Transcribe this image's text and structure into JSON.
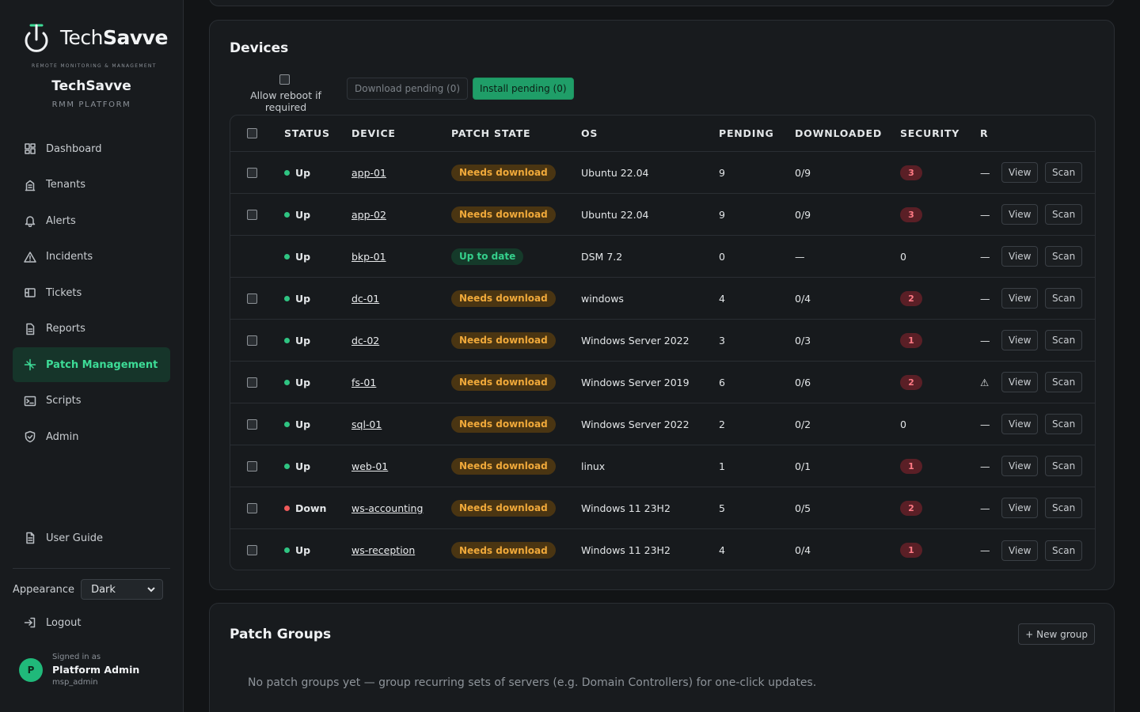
{
  "brand": {
    "logo_text_light": "Tech",
    "logo_text_bold": "Savve",
    "logo_sub": "REMOTE MONITORING & MANAGEMENT",
    "title": "TechSavve",
    "subtitle": "RMM PLATFORM"
  },
  "nav": [
    {
      "label": "Dashboard",
      "icon": "dashboard-icon"
    },
    {
      "label": "Tenants",
      "icon": "building-icon"
    },
    {
      "label": "Alerts",
      "icon": "bell-icon"
    },
    {
      "label": "Incidents",
      "icon": "warning-icon"
    },
    {
      "label": "Tickets",
      "icon": "ticket-icon"
    },
    {
      "label": "Reports",
      "icon": "report-icon"
    },
    {
      "label": "Patch Management",
      "icon": "patch-icon",
      "active": true
    },
    {
      "label": "Scripts",
      "icon": "terminal-icon"
    },
    {
      "label": "Admin",
      "icon": "shield-icon"
    }
  ],
  "footer": {
    "user_guide": "User Guide",
    "appearance_label": "Appearance",
    "appearance_value": "Dark",
    "logout": "Logout",
    "signed_in_as": "Signed in as",
    "user_name": "Platform Admin",
    "user_handle": "msp_admin",
    "avatar_initial": "P"
  },
  "devices": {
    "title": "Devices",
    "allow_reboot_label": "Allow reboot if required",
    "download_pending": "Download pending (0)",
    "install_pending": "Install pending (0)",
    "columns": {
      "status": "STATUS",
      "device": "DEVICE",
      "patch_state": "PATCH STATE",
      "os": "OS",
      "pending": "PENDING",
      "downloaded": "DOWNLOADED",
      "security": "SECURITY",
      "r": "R"
    },
    "view_label": "View",
    "scan_label": "Scan",
    "rows": [
      {
        "checkbox": true,
        "status": "Up",
        "down": false,
        "device": "app-01",
        "patch": "Needs download",
        "ok": false,
        "os": "Ubuntu 22.04",
        "pending": "9",
        "downloaded": "0/9",
        "security": "3",
        "sec_badge": true,
        "r": "—"
      },
      {
        "checkbox": true,
        "status": "Up",
        "down": false,
        "device": "app-02",
        "patch": "Needs download",
        "ok": false,
        "os": "Ubuntu 22.04",
        "pending": "9",
        "downloaded": "0/9",
        "security": "3",
        "sec_badge": true,
        "r": "—"
      },
      {
        "checkbox": false,
        "status": "Up",
        "down": false,
        "device": "bkp-01",
        "patch": "Up to date",
        "ok": true,
        "os": "DSM 7.2",
        "pending": "0",
        "downloaded": "—",
        "security": "0",
        "sec_badge": false,
        "r": "—"
      },
      {
        "checkbox": true,
        "status": "Up",
        "down": false,
        "device": "dc-01",
        "patch": "Needs download",
        "ok": false,
        "os": "windows",
        "pending": "4",
        "downloaded": "0/4",
        "security": "2",
        "sec_badge": true,
        "r": "—"
      },
      {
        "checkbox": true,
        "status": "Up",
        "down": false,
        "device": "dc-02",
        "patch": "Needs download",
        "ok": false,
        "os": "Windows Server 2022",
        "pending": "3",
        "downloaded": "0/3",
        "security": "1",
        "sec_badge": true,
        "r": "—"
      },
      {
        "checkbox": true,
        "status": "Up",
        "down": false,
        "device": "fs-01",
        "patch": "Needs download",
        "ok": false,
        "os": "Windows Server 2019",
        "pending": "6",
        "downloaded": "0/6",
        "security": "2",
        "sec_badge": true,
        "r": "⚠"
      },
      {
        "checkbox": true,
        "status": "Up",
        "down": false,
        "device": "sql-01",
        "patch": "Needs download",
        "ok": false,
        "os": "Windows Server 2022",
        "pending": "2",
        "downloaded": "0/2",
        "security": "0",
        "sec_badge": false,
        "r": "—"
      },
      {
        "checkbox": true,
        "status": "Up",
        "down": false,
        "device": "web-01",
        "patch": "Needs download",
        "ok": false,
        "os": "linux",
        "pending": "1",
        "downloaded": "0/1",
        "security": "1",
        "sec_badge": true,
        "r": "—"
      },
      {
        "checkbox": true,
        "status": "Down",
        "down": true,
        "device": "ws-accounting",
        "patch": "Needs download",
        "ok": false,
        "os": "Windows 11 23H2",
        "pending": "5",
        "downloaded": "0/5",
        "security": "2",
        "sec_badge": true,
        "r": "—"
      },
      {
        "checkbox": true,
        "status": "Up",
        "down": false,
        "device": "ws-reception",
        "patch": "Needs download",
        "ok": false,
        "os": "Windows 11 23H2",
        "pending": "4",
        "downloaded": "0/4",
        "security": "1",
        "sec_badge": true,
        "r": "—"
      }
    ]
  },
  "patch_groups": {
    "title": "Patch Groups",
    "new_group": "+ New group",
    "empty": "No patch groups yet — group recurring sets of servers (e.g. Domain Controllers) for one-click updates."
  }
}
